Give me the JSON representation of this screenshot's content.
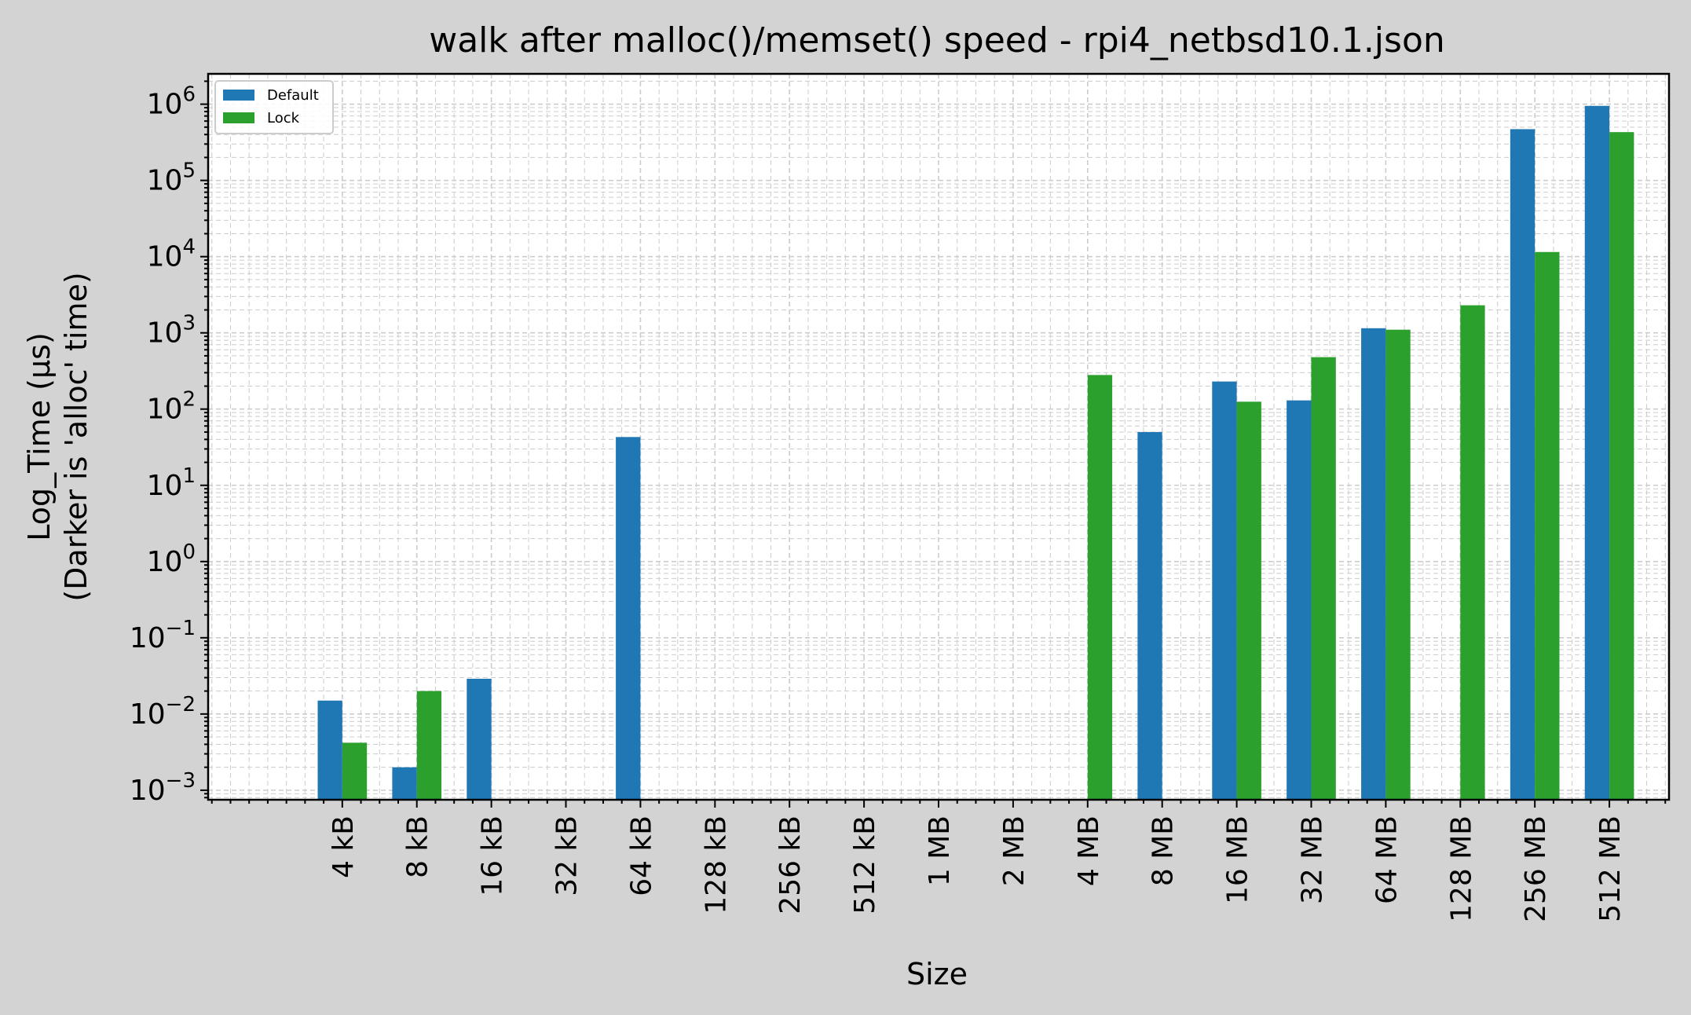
{
  "chart_data": {
    "type": "bar",
    "title": "walk after malloc()/memset() speed - rpi4_netbsd10.1.json",
    "xlabel": "Size",
    "ylabel_line1": "Log_Time (µs)",
    "ylabel_line2": "(Darker is 'alloc' time)",
    "yscale": "log",
    "ylim": [
      0.00075,
      2500000
    ],
    "yticks": [
      {
        "base": "10",
        "exp": "−3",
        "value": 0.001
      },
      {
        "base": "10",
        "exp": "−2",
        "value": 0.01
      },
      {
        "base": "10",
        "exp": "−1",
        "value": 0.1
      },
      {
        "base": "10",
        "exp": "0",
        "value": 1
      },
      {
        "base": "10",
        "exp": "1",
        "value": 10
      },
      {
        "base": "10",
        "exp": "2",
        "value": 100
      },
      {
        "base": "10",
        "exp": "3",
        "value": 1000
      },
      {
        "base": "10",
        "exp": "4",
        "value": 10000
      },
      {
        "base": "10",
        "exp": "5",
        "value": 100000
      },
      {
        "base": "10",
        "exp": "6",
        "value": 1000000
      }
    ],
    "categories": [
      "4 kB",
      "8 kB",
      "16 kB",
      "32 kB",
      "64 kB",
      "128 kB",
      "256 kB",
      "512 kB",
      "1 MB",
      "2 MB",
      "4 MB",
      "8 MB",
      "16 MB",
      "32 MB",
      "64 MB",
      "128 MB",
      "256 MB",
      "512 MB"
    ],
    "series": [
      {
        "name": "Default",
        "color": "#1f77b4",
        "values": [
          0.015,
          0.002,
          0.029,
          null,
          43,
          null,
          null,
          null,
          null,
          null,
          null,
          50,
          230,
          130,
          1150,
          null,
          470000,
          950000
        ]
      },
      {
        "name": "Lock",
        "color": "#2ca02c",
        "values": [
          0.0042,
          0.02,
          null,
          null,
          null,
          null,
          null,
          null,
          null,
          null,
          280,
          null,
          125,
          480,
          1100,
          2300,
          11500,
          430000
        ]
      }
    ],
    "legend_position": "upper left",
    "grid": true
  }
}
